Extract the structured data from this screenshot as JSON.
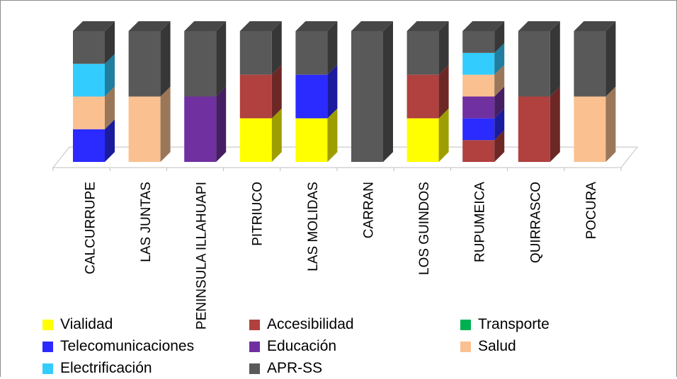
{
  "chart_data": {
    "type": "bar",
    "stacked": true,
    "three_d": true,
    "grid": false,
    "legend_position": "bottom",
    "categories": [
      "CALCURRUPE",
      "LAS JUNTAS",
      "PENINSULA ILLAHUAPI",
      "PITRIUCO",
      "LAS MOLIDAS",
      "CARRAN",
      "LOS GUINDOS",
      "RUPUMEICA",
      "QUIRRASCO",
      "POCURA"
    ],
    "series": [
      {
        "name": "Vialidad",
        "color": "#FFFF00",
        "values": [
          0,
          0,
          0,
          2,
          2,
          0,
          2,
          0,
          0,
          0
        ]
      },
      {
        "name": "Accesibilidad",
        "color": "#B0413E",
        "values": [
          0,
          0,
          0,
          2,
          0,
          0,
          2,
          1,
          3,
          0
        ]
      },
      {
        "name": "Transporte",
        "color": "#00B050",
        "values": [
          0,
          0,
          0,
          0,
          0,
          0,
          0,
          0,
          0,
          0
        ]
      },
      {
        "name": "Telecomunicaciones",
        "color": "#2B2BFF",
        "values": [
          1.5,
          0,
          0,
          0,
          2,
          0,
          0,
          1,
          0,
          0
        ]
      },
      {
        "name": "Educación",
        "color": "#7030A0",
        "values": [
          0,
          0,
          3,
          0,
          0,
          0,
          0,
          1,
          0,
          0
        ]
      },
      {
        "name": "Salud",
        "color": "#FAC090",
        "values": [
          1.5,
          3,
          0,
          0,
          0,
          0,
          0,
          1,
          0,
          3
        ]
      },
      {
        "name": "Electrificación",
        "color": "#33CCFF",
        "values": [
          1.5,
          0,
          0,
          0,
          0,
          0,
          0,
          1,
          0,
          0
        ]
      },
      {
        "name": "APR-SS",
        "color": "#595959",
        "values": [
          1.5,
          3,
          3,
          2,
          2,
          6,
          2,
          1,
          3,
          3
        ]
      }
    ],
    "ylim": [
      0,
      6
    ]
  }
}
